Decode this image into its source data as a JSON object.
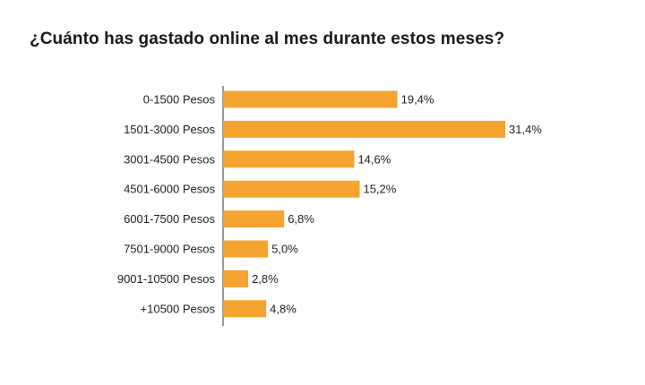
{
  "chart_data": {
    "type": "bar",
    "orientation": "horizontal",
    "title": "¿Cuánto has gastado online al mes durante estos meses?",
    "categories": [
      "0-1500 Pesos",
      "1501-3000 Pesos",
      "3001-4500 Pesos",
      "4501-6000 Pesos",
      "6001-7500 Pesos",
      "7501-9000 Pesos",
      "9001-10500 Pesos",
      "+10500 Pesos"
    ],
    "values": [
      19.4,
      31.4,
      14.6,
      15.2,
      6.8,
      5.0,
      2.8,
      4.8
    ],
    "value_labels": [
      "19,4%",
      "31,4%",
      "14,6%",
      "15,2%",
      "6,8%",
      "5,0%",
      "2,8%",
      "4,8%"
    ],
    "xlim": [
      0,
      31.4
    ],
    "bar_color": "#f5a431",
    "axis_color": "#333333",
    "grid": false,
    "legend": "none"
  }
}
